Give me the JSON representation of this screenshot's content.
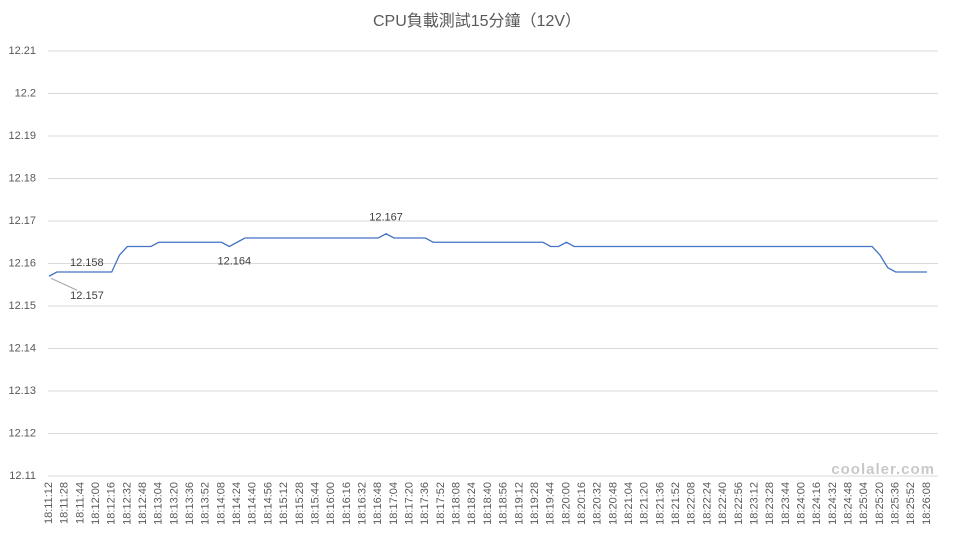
{
  "chart_data": {
    "type": "line",
    "title": "CPU負載測試15分鐘（12V）",
    "watermark": "coolaler.com",
    "categories": [
      "18:11:12",
      null,
      "18:11:28",
      null,
      "18:11:44",
      null,
      "18:12:00",
      null,
      "18:12:16",
      null,
      "18:12:32",
      null,
      "18:12:48",
      null,
      "18:13:04",
      null,
      "18:13:20",
      null,
      "18:13:36",
      null,
      "18:13:52",
      null,
      "18:14:08",
      null,
      "18:14:24",
      null,
      "18:14:40",
      null,
      "18:14:56",
      null,
      "18:15:12",
      null,
      "18:15:28",
      null,
      "18:15:44",
      null,
      "18:16:00",
      null,
      "18:16:16",
      null,
      "18:16:32",
      null,
      "18:16:48",
      null,
      "18:17:04",
      null,
      "18:17:20",
      null,
      "18:17:36",
      null,
      "18:17:52",
      null,
      "18:18:08",
      null,
      "18:18:24",
      null,
      "18:18:40",
      null,
      "18:18:56",
      null,
      "18:19:12",
      null,
      "18:19:28",
      null,
      "18:19:44",
      null,
      "18:20:00",
      null,
      "18:20:16",
      null,
      "18:20:32",
      null,
      "18:20:48",
      null,
      "18:21:04",
      null,
      "18:21:20",
      null,
      "18:21:36",
      null,
      "18:21:52",
      null,
      "18:22:08",
      null,
      "18:22:24",
      null,
      "18:22:40",
      null,
      "18:22:56",
      null,
      "18:23:12",
      null,
      "18:23:28",
      null,
      "18:23:44",
      null,
      "18:24:00",
      null,
      "18:24:16",
      null,
      "18:24:32",
      null,
      "18:24:48",
      null,
      "18:25:04",
      null,
      "18:25:20",
      null,
      "18:25:36",
      null,
      "18:25:52",
      null,
      "18:26:08"
    ],
    "values": [
      12.157,
      12.158,
      12.158,
      12.158,
      12.158,
      12.158,
      12.158,
      12.158,
      12.158,
      12.162,
      12.164,
      12.164,
      12.164,
      12.164,
      12.165,
      12.165,
      12.165,
      12.165,
      12.165,
      12.165,
      12.165,
      12.165,
      12.165,
      12.164,
      12.165,
      12.166,
      12.166,
      12.166,
      12.166,
      12.166,
      12.166,
      12.166,
      12.166,
      12.166,
      12.166,
      12.166,
      12.166,
      12.166,
      12.166,
      12.166,
      12.166,
      12.166,
      12.166,
      12.167,
      12.166,
      12.166,
      12.166,
      12.166,
      12.166,
      12.165,
      12.165,
      12.165,
      12.165,
      12.165,
      12.165,
      12.165,
      12.165,
      12.165,
      12.165,
      12.165,
      12.165,
      12.165,
      12.165,
      12.165,
      12.164,
      12.164,
      12.165,
      12.164,
      12.164,
      12.164,
      12.164,
      12.164,
      12.164,
      12.164,
      12.164,
      12.164,
      12.164,
      12.164,
      12.164,
      12.164,
      12.164,
      12.164,
      12.164,
      12.164,
      12.164,
      12.164,
      12.164,
      12.164,
      12.164,
      12.164,
      12.164,
      12.164,
      12.164,
      12.164,
      12.164,
      12.164,
      12.164,
      12.164,
      12.164,
      12.164,
      12.164,
      12.164,
      12.164,
      12.164,
      12.164,
      12.164,
      12.162,
      12.159,
      12.158,
      12.158,
      12.158,
      12.158,
      12.158
    ],
    "color": "#4472c4",
    "ylim": [
      12.11,
      12.21
    ],
    "yticks": [
      12.11,
      12.12,
      12.13,
      12.14,
      12.15,
      12.16,
      12.17,
      12.18,
      12.19,
      12.2,
      12.21
    ],
    "grid": true
  }
}
